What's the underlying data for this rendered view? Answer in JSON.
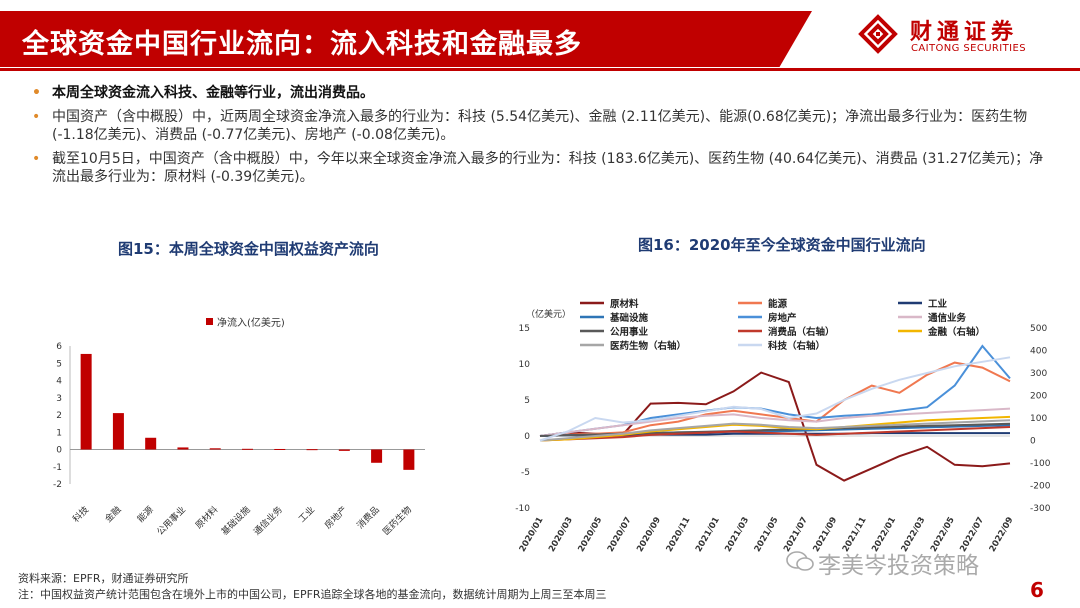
{
  "header": {
    "title": "全球资金中国行业流向：流入科技和金融最多",
    "logo_cn": "财通证券",
    "logo_en": "CAITONG SECURITIES",
    "logo_icon": "caitong-logo-icon"
  },
  "bullets": [
    "本周全球资金流入科技、金融等行业，流出消费品。",
    "中国资产（含中概股）中，近两周全球资金净流入最多的行业为：科技 (5.54亿美元)、金融 (2.11亿美元)、能源(0.68亿美元)；净流出最多行业为：医药生物 (-1.18亿美元)、消费品 (-0.77亿美元)、房地产 (-0.08亿美元)。",
    "截至10月5日，中国资产（含中概股）中，今年以来全球资金净流入最多的行业为：科技 (183.6亿美元)、医药生物 (40.64亿美元)、消费品 (31.27亿美元)；净流出最多行业为：原材料 (-0.39亿美元)。"
  ],
  "figures": {
    "fig15_title": "图15：本周全球资金中国权益资产流向",
    "fig16_title": "图16：2020年至今全球资金中国行业流向"
  },
  "colors": {
    "brand_red": "#c00000",
    "bar_red": "#c00000",
    "fig_title_blue": "#1f3b73",
    "bullet_orange": "#e08a2a"
  },
  "chart_data": [
    {
      "type": "bar",
      "legend": "净流入(亿美元)",
      "legend_position": "top",
      "categories": [
        "科技",
        "金融",
        "能源",
        "公用事业",
        "原材料",
        "基础设施",
        "通信业务",
        "工业",
        "房地产",
        "消费品",
        "医药生物"
      ],
      "values": [
        5.54,
        2.11,
        0.68,
        0.12,
        0.07,
        0.04,
        0.03,
        0.02,
        -0.08,
        -0.77,
        -1.18
      ],
      "ylim": [
        -2,
        6
      ],
      "yticks": [
        "6",
        "5",
        "4",
        "3",
        "2",
        "1",
        "0",
        "-1",
        "-2"
      ],
      "grid": false
    },
    {
      "type": "line",
      "left_unit": "（亿美元）",
      "left_ylim": [
        -10,
        15
      ],
      "left_ticks": [
        "15",
        "10",
        "5",
        "0",
        "-5",
        "-10"
      ],
      "right_ylim": [
        -300,
        500
      ],
      "right_ticks": [
        "500",
        "400",
        "300",
        "200",
        "100",
        "0",
        "-100",
        "-200",
        "-300"
      ],
      "x_labels": [
        "2020/01",
        "2020/03",
        "2020/05",
        "2020/07",
        "2020/09",
        "2020/11",
        "2021/01",
        "2021/03",
        "2021/05",
        "2021/07",
        "2021/09",
        "2021/11",
        "2022/01",
        "2022/03",
        "2022/05",
        "2022/07",
        "2022/09"
      ],
      "legend_position": "top",
      "series": [
        {
          "name": "原材料",
          "color": "#8b1a1a",
          "axis": "left",
          "values": [
            0,
            0.5,
            0.3,
            0.2,
            4.5,
            4.6,
            4.4,
            6.2,
            8.8,
            7.5,
            -4.0,
            -6.2,
            -4.5,
            -2.8,
            -1.5,
            -4.0,
            -4.2,
            -3.8
          ]
        },
        {
          "name": "能源",
          "color": "#f07850",
          "axis": "left",
          "values": [
            0,
            0.2,
            0.3,
            0.5,
            1.5,
            2.0,
            3.0,
            3.5,
            3.0,
            2.5,
            2.0,
            5.0,
            7.0,
            6.0,
            8.5,
            10.2,
            9.5,
            7.6
          ]
        },
        {
          "name": "工业",
          "color": "#1f3b73",
          "axis": "left",
          "values": [
            0,
            0.1,
            0.1,
            0.1,
            0.2,
            0.2,
            0.2,
            0.3,
            0.3,
            0.3,
            0.3,
            0.3,
            0.4,
            0.4,
            0.4,
            0.4,
            0.4,
            0.4
          ]
        },
        {
          "name": "基础设施",
          "color": "#2e75b6",
          "axis": "left",
          "values": [
            0,
            0.1,
            0.2,
            0.3,
            0.4,
            0.5,
            0.5,
            0.6,
            0.6,
            0.7,
            0.8,
            0.9,
            1.0,
            1.1,
            1.2,
            1.3,
            1.4,
            1.5
          ]
        },
        {
          "name": "房地产",
          "color": "#4a90d9",
          "axis": "left",
          "values": [
            0,
            0.5,
            1.0,
            1.5,
            2.5,
            3.0,
            3.5,
            4.0,
            3.8,
            3.0,
            2.5,
            2.8,
            3.0,
            3.5,
            4.0,
            7.0,
            12.5,
            8.0
          ]
        },
        {
          "name": "通信业务",
          "color": "#d9b8c8",
          "axis": "left",
          "values": [
            0,
            0.5,
            1.0,
            1.5,
            2.0,
            2.5,
            2.8,
            3.0,
            2.5,
            2.2,
            2.0,
            2.5,
            2.8,
            3.0,
            3.2,
            3.4,
            3.6,
            3.8
          ]
        },
        {
          "name": "公用事业",
          "color": "#595959",
          "axis": "left",
          "values": [
            0,
            0.1,
            0.2,
            0.3,
            0.4,
            0.5,
            0.6,
            0.7,
            0.8,
            0.9,
            1.0,
            1.1,
            1.2,
            1.3,
            1.4,
            1.5,
            1.6,
            1.7
          ]
        },
        {
          "name": "消费品（右轴）",
          "color": "#c0392b",
          "axis": "right",
          "values": [
            0,
            5,
            10,
            15,
            25,
            30,
            35,
            40,
            35,
            30,
            25,
            30,
            35,
            40,
            45,
            50,
            55,
            60
          ]
        },
        {
          "name": "金融（右轴）",
          "color": "#f2b600",
          "axis": "right",
          "values": [
            0,
            5,
            15,
            25,
            40,
            50,
            60,
            70,
            65,
            55,
            50,
            60,
            70,
            80,
            90,
            95,
            100,
            105
          ]
        },
        {
          "name": "医药生物（右轴）",
          "color": "#a6a6a6",
          "axis": "right",
          "values": [
            0,
            10,
            20,
            30,
            45,
            55,
            65,
            75,
            70,
            60,
            55,
            60,
            65,
            70,
            75,
            80,
            85,
            90
          ]
        },
        {
          "name": "科技（右轴）",
          "color": "#c9d8f0",
          "axis": "right",
          "values": [
            0,
            40,
            100,
            80,
            90,
            110,
            130,
            150,
            140,
            100,
            120,
            180,
            230,
            270,
            300,
            330,
            350,
            370
          ]
        }
      ]
    }
  ],
  "footer": {
    "source": "资料来源：EPFR，财通证券研究所",
    "note": "注：中国权益资产统计范围包含在境外上市的中国公司，EPFR追踪全球各地的基金流向，数据统计周期为上周三至本周三"
  },
  "watermark": "李美岑投资策略",
  "watermark_icon": "wechat-icon",
  "page_number": "6"
}
